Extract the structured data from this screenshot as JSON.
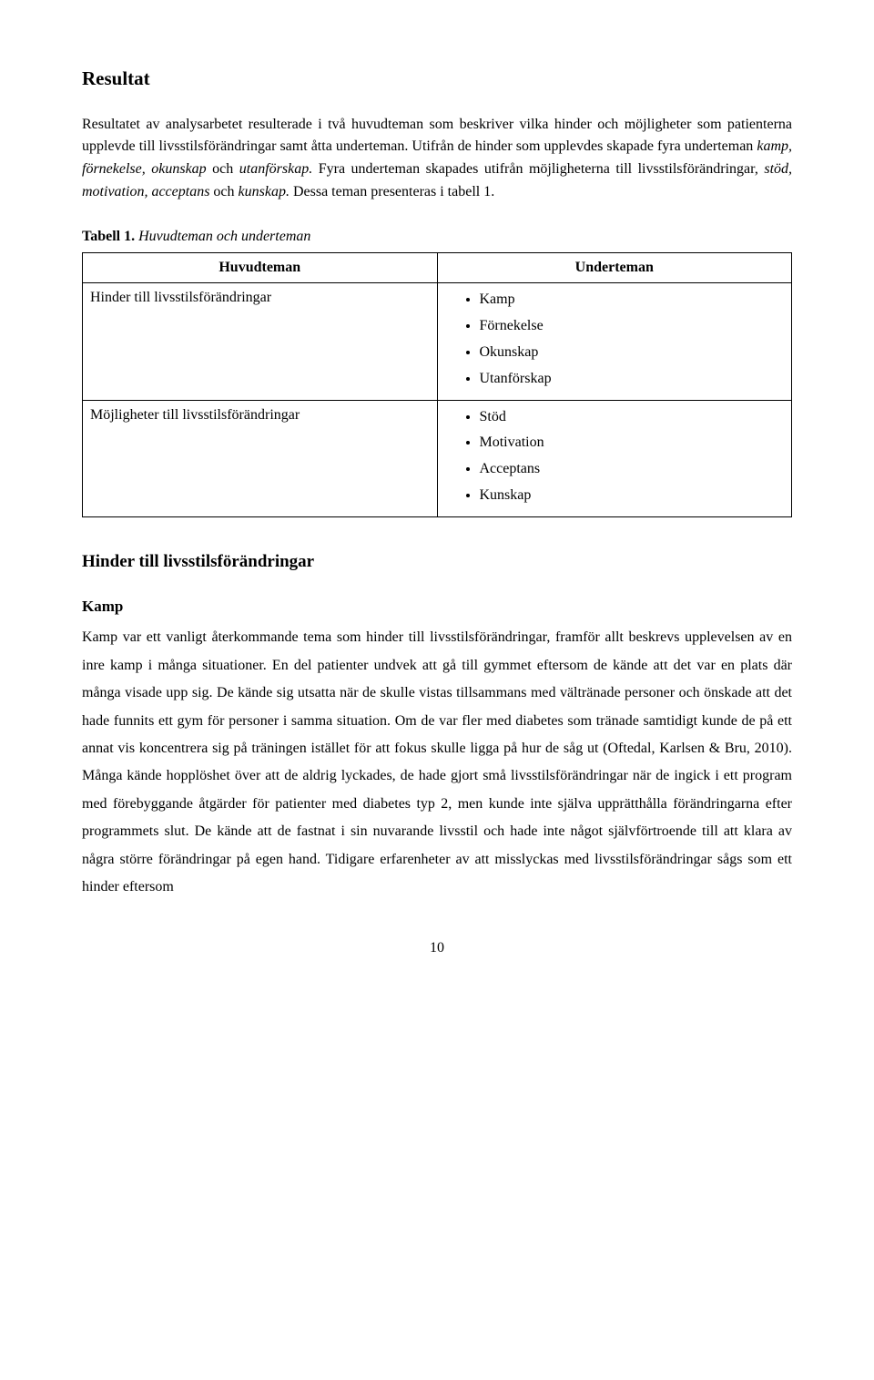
{
  "sectionTitle": "Resultat",
  "intro": {
    "p1": "Resultatet av analysarbetet resulterade i två huvudteman som beskriver vilka hinder och möjligheter som patienterna upplevde till livsstilsförändringar samt åtta underteman. Utifrån de hinder som upplevdes skapade fyra underteman ",
    "p1_i1": "kamp, förnekelse, okunskap ",
    "p1_mid": "och ",
    "p1_i2": "utanförskap. ",
    "p1_after": "Fyra underteman skapades utifrån möjligheterna till livsstilsförändringar, ",
    "p1_i3": "stöd, motivation, acceptans ",
    "p1_mid2": "och ",
    "p1_i4": "kunskap. ",
    "p1_tail": "Dessa teman presenteras i tabell 1."
  },
  "tableCaption": {
    "bold": "Tabell 1.",
    "italic": " Huvudteman och underteman"
  },
  "table": {
    "header": {
      "left": "Huvudteman",
      "right": "Underteman"
    },
    "row1": {
      "left": "Hinder till livsstilsförändringar",
      "bullets": [
        "Kamp",
        "Förnekelse",
        "Okunskap",
        "Utanförskap"
      ]
    },
    "row2": {
      "left": "Möjligheter till livsstilsförändringar",
      "bullets": [
        "Stöd",
        "Motivation",
        "Acceptans",
        "Kunskap"
      ]
    }
  },
  "subHeading": "Hinder till livsstilsförändringar",
  "subSubHeading": "Kamp",
  "bodyPara": "Kamp var ett vanligt återkommande tema som hinder till livsstilsförändringar, framför allt beskrevs upplevelsen av en inre kamp i många situationer. En del patienter undvek att gå till gymmet eftersom de kände att det var en plats där många visade upp sig. De kände sig utsatta när de skulle vistas tillsammans med vältränade personer och önskade att det hade funnits ett gym för personer i samma situation. Om de var fler med diabetes som tränade samtidigt kunde de på ett annat vis koncentrera sig på träningen istället för att fokus skulle ligga på hur de såg ut (Oftedal, Karlsen & Bru, 2010). Många kände hopplöshet över att de aldrig lyckades, de hade gjort små livsstilsförändringar när de ingick i ett program med förebyggande åtgärder för patienter med diabetes typ 2, men kunde inte själva upprätthålla förändringarna efter programmets slut. De kände att de fastnat i sin nuvarande livsstil och hade inte något självförtroende till att klara av några större förändringar på egen hand. Tidigare erfarenheter av att misslyckas med livsstilsförändringar sågs som ett hinder eftersom",
  "pageNumber": "10"
}
